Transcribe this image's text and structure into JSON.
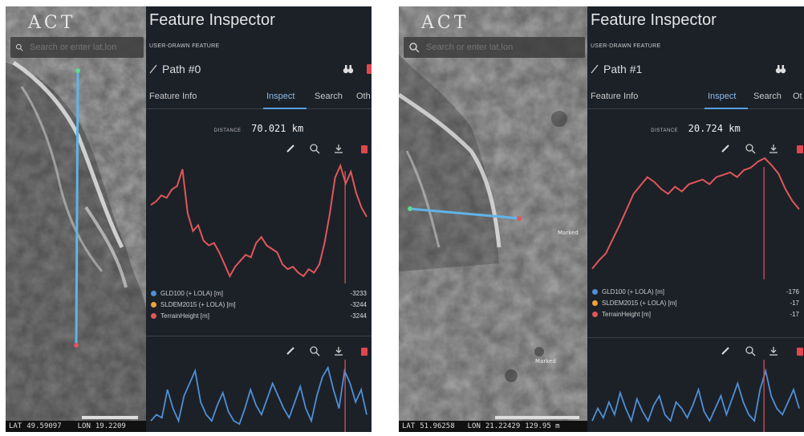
{
  "panels": [
    {
      "app_logo": "ACT",
      "search_placeholder": "Search or enter lat,lon",
      "status": {
        "lat_label": "LAT",
        "lat": "49.59097",
        "lon_label": "LON",
        "lon": "19.2209"
      },
      "inspector": {
        "title": "Feature Inspector",
        "subtitle": "USER-DRAWN FEATURE",
        "path_name": "Path #0",
        "tabs": [
          "Feature Info",
          "Inspect",
          "Search",
          "Oth"
        ],
        "active_tab": 1,
        "distance_label": "DISTANCE",
        "distance_value": "70.021 km",
        "legend": [
          {
            "name": "GLD100 (+ LOLA) [m]",
            "value": "-3233",
            "color": "#4f8fd6"
          },
          {
            "name": "SLDEM2015 (+ LOLA) [m]",
            "value": "-3244",
            "color": "#f0a23c"
          },
          {
            "name": "TerrainHeight [m]",
            "value": "-3244",
            "color": "#e0575a"
          }
        ]
      }
    },
    {
      "app_logo": "ACT",
      "search_placeholder": "Search or enter lat,lon",
      "status": {
        "lat_label": "LAT",
        "lat": "51.96258",
        "lon_label": "LON",
        "lon": "21.22429",
        "extra": "129.95 m"
      },
      "map_labels": [
        "Marked",
        "Marked"
      ],
      "inspector": {
        "title": "Feature Inspector",
        "subtitle": "USER-DRAWN FEATURE",
        "path_name": "Path #1",
        "tabs": [
          "Feature Info",
          "Inspect",
          "Search",
          "Ot"
        ],
        "active_tab": 1,
        "distance_label": "DISTANCE",
        "distance_value": "20.724 km",
        "legend": [
          {
            "name": "GLD100 (+ LOLA) [m]",
            "value": "-176",
            "color": "#4f8fd6"
          },
          {
            "name": "SLDEM2015 (+ LOLA) [m]",
            "value": "-17",
            "color": "#f0a23c"
          },
          {
            "name": "TerrainHeight [m]",
            "value": "-17",
            "color": "#e0575a"
          }
        ]
      }
    }
  ],
  "colors": {
    "profile_line": "#e0575a",
    "path_line": "#5fb4e8",
    "slope_line": "#4f8fd6",
    "active_tab": "#8fbbe8"
  },
  "icons": [
    "search-icon",
    "pencil-icon",
    "zoom-icon",
    "download-icon",
    "trash-icon",
    "binoculars-icon",
    "path-icon"
  ],
  "chart_data": [
    {
      "type": "line",
      "series": [
        {
          "values": [
            0.62,
            0.65,
            0.7,
            0.68,
            0.75,
            0.78,
            0.92,
            0.55,
            0.4,
            0.45,
            0.32,
            0.28,
            0.3,
            0.22,
            0.12,
            0.02,
            0.1,
            0.15,
            0.2,
            0.18,
            0.3,
            0.35,
            0.28,
            0.25,
            0.22,
            0.12,
            0.08,
            0.1,
            0.05,
            0.02,
            0.08,
            0.05,
            0.12,
            0.3,
            0.55,
            0.85,
            0.95,
            0.8,
            0.9,
            0.72,
            0.6,
            0.52
          ]
        }
      ],
      "xlabel": "",
      "ylabel": ""
    },
    {
      "type": "line",
      "series": [
        {
          "values": [
            0.05,
            0.12,
            0.18,
            0.3,
            0.42,
            0.55,
            0.68,
            0.75,
            0.82,
            0.78,
            0.72,
            0.68,
            0.74,
            0.7,
            0.76,
            0.78,
            0.8,
            0.76,
            0.82,
            0.84,
            0.86,
            0.82,
            0.88,
            0.9,
            0.95,
            0.98,
            0.92,
            0.85,
            0.72,
            0.62,
            0.55
          ]
        }
      ],
      "xlabel": "",
      "ylabel": ""
    },
    {
      "type": "line",
      "series": [
        {
          "values": [
            0.1,
            0.2,
            0.15,
            0.6,
            0.3,
            0.1,
            0.5,
            0.7,
            0.9,
            0.4,
            0.2,
            0.1,
            0.35,
            0.55,
            0.25,
            0.1,
            0.05,
            0.3,
            0.6,
            0.35,
            0.2,
            0.45,
            0.7,
            0.5,
            0.3,
            0.15,
            0.4,
            0.65,
            0.3,
            0.1,
            0.5,
            0.8,
            0.95,
            0.6,
            0.3,
            0.9,
            0.7,
            0.4,
            0.6,
            0.2
          ]
        }
      ],
      "xlabel": "",
      "ylabel": ""
    },
    {
      "type": "line",
      "series": [
        {
          "values": [
            0.1,
            0.3,
            0.15,
            0.4,
            0.2,
            0.55,
            0.3,
            0.1,
            0.45,
            0.25,
            0.1,
            0.35,
            0.5,
            0.2,
            0.1,
            0.4,
            0.3,
            0.15,
            0.35,
            0.6,
            0.25,
            0.1,
            0.3,
            0.5,
            0.2,
            0.45,
            0.7,
            0.4,
            0.2,
            0.1,
            0.6,
            0.9,
            0.5,
            0.3,
            0.2,
            0.4,
            0.6,
            0.3
          ]
        }
      ],
      "xlabel": "",
      "ylabel": ""
    }
  ]
}
